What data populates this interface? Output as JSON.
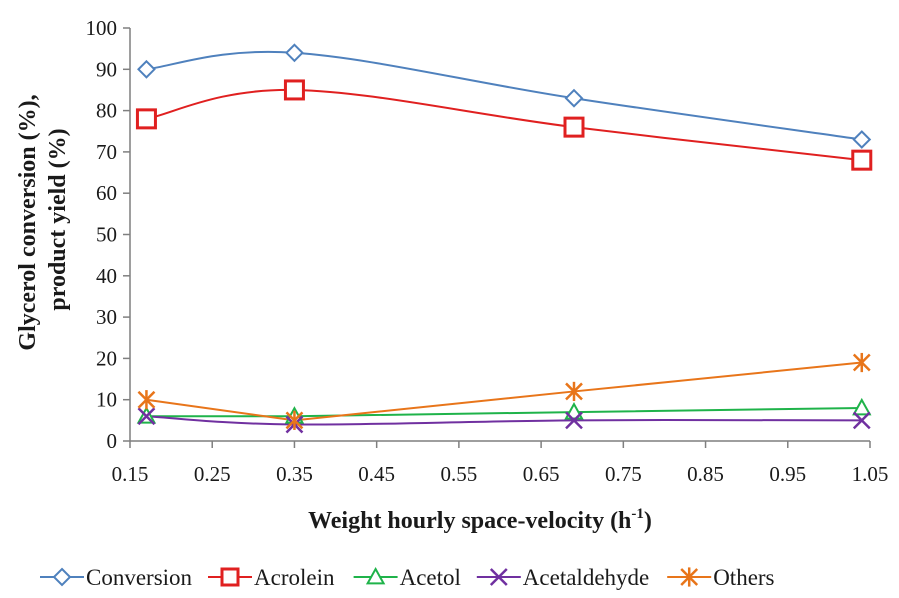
{
  "chart_data": {
    "type": "line",
    "xlabel": "Weight hourly space-velocity (h",
    "xlabel_sup": "-1",
    "xlabel_close": ")",
    "ylabel_line1": "Glycerol conversion (%),",
    "ylabel_line2": "product yield (%)",
    "xlim": [
      0.15,
      1.05
    ],
    "ylim": [
      0,
      100
    ],
    "x_ticks": [
      "0.15",
      "0.25",
      "0.35",
      "0.45",
      "0.55",
      "0.65",
      "0.75",
      "0.85",
      "0.95",
      "1.05"
    ],
    "x_tick_values": [
      0.15,
      0.25,
      0.35,
      0.45,
      0.55,
      0.65,
      0.75,
      0.85,
      0.95,
      1.05
    ],
    "y_ticks": [
      "0",
      "10",
      "20",
      "30",
      "40",
      "50",
      "60",
      "70",
      "80",
      "90",
      "100"
    ],
    "y_tick_values": [
      0,
      10,
      20,
      30,
      40,
      50,
      60,
      70,
      80,
      90,
      100
    ],
    "grid": false,
    "legend_position": "bottom",
    "x": [
      0.17,
      0.35,
      0.69,
      1.04
    ],
    "series": [
      {
        "name": "Conversion",
        "values": [
          90,
          94,
          83,
          73
        ],
        "color": "#4f81bd",
        "marker": "diamond",
        "smooth": true
      },
      {
        "name": "Acrolein",
        "values": [
          78,
          85,
          76,
          68
        ],
        "color": "#e02020",
        "marker": "square",
        "smooth": true
      },
      {
        "name": "Acetol",
        "values": [
          6,
          6,
          7,
          8
        ],
        "color": "#1fb34a",
        "marker": "triangle",
        "smooth": false
      },
      {
        "name": "Acetaldehyde",
        "values": [
          6,
          4,
          5,
          5
        ],
        "color": "#7030a0",
        "marker": "x",
        "smooth": true
      },
      {
        "name": "Others",
        "values": [
          10,
          5,
          12,
          19
        ],
        "color": "#e8751a",
        "marker": "star",
        "smooth": false
      }
    ]
  }
}
